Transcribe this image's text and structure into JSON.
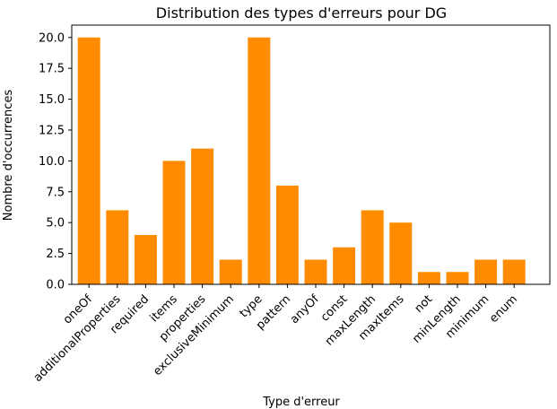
{
  "chart_data": {
    "type": "bar",
    "title": "Distribution des types d'erreurs pour DG",
    "xlabel": "Type d'erreur",
    "ylabel": "Nombre d'occurrences",
    "categories": [
      "oneOf",
      "additionalProperties",
      "required",
      "items",
      "properties",
      "exclusiveMinimum",
      "type",
      "pattern",
      "anyOf",
      "const",
      "maxLength",
      "maxItems",
      "not",
      "minLength",
      "minimum",
      "enum"
    ],
    "values": [
      20,
      6,
      4,
      10,
      11,
      2,
      20,
      8,
      2,
      3,
      6,
      5,
      1,
      1,
      2,
      2
    ],
    "ylim": [
      0,
      21
    ],
    "yticks": [
      "0.0",
      "2.5",
      "5.0",
      "7.5",
      "10.0",
      "12.5",
      "15.0",
      "17.5",
      "20.0"
    ],
    "bar_color": "#ff8c00",
    "grid": false,
    "legend": "none"
  }
}
